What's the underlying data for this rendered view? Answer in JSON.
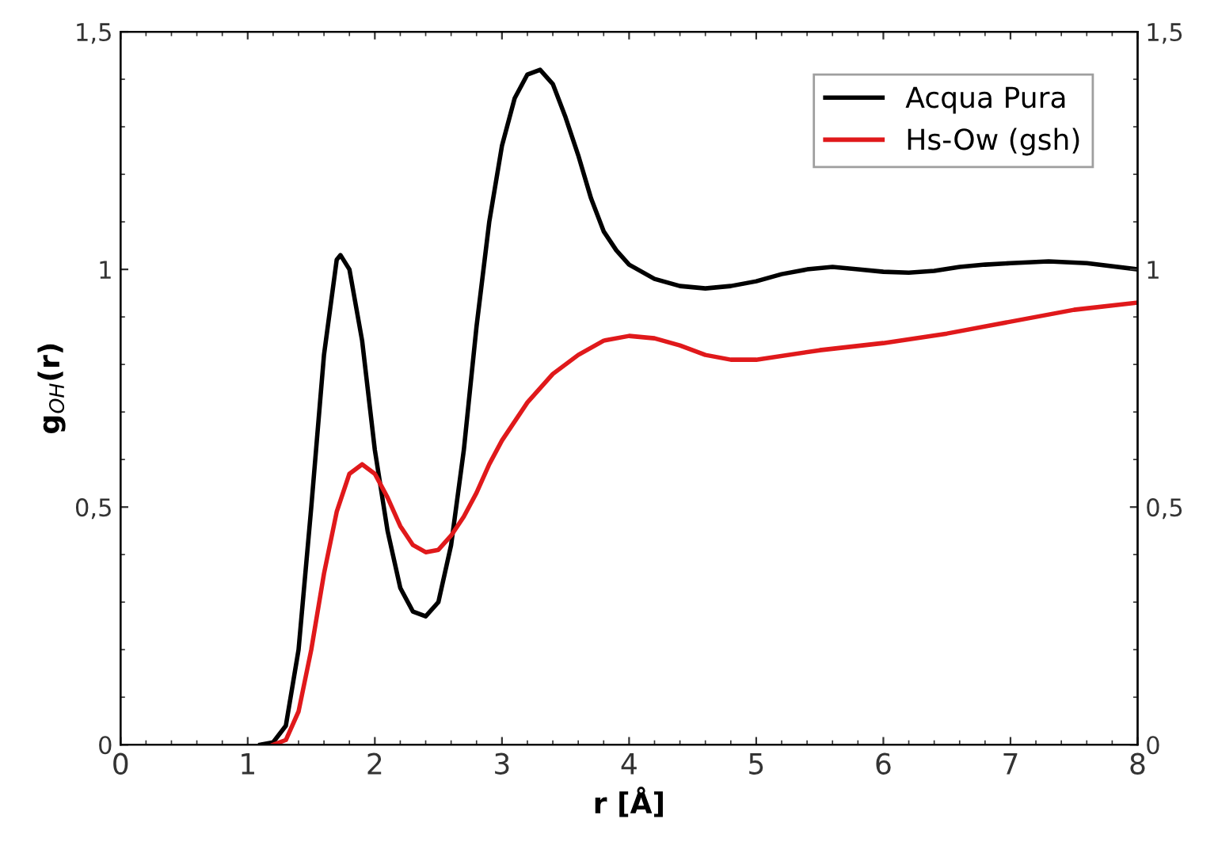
{
  "chart_data": {
    "type": "line",
    "xlabel": "r [Å]",
    "ylabel": "g$_{OH}$(r)",
    "xlim": [
      0,
      8
    ],
    "xticks": [
      0,
      1,
      2,
      3,
      4,
      5,
      6,
      7,
      8
    ],
    "ylim": [
      0,
      1.5
    ],
    "yticks": [
      0,
      {
        "value": 0.5,
        "label": "0,5"
      },
      1,
      {
        "value": 1.5,
        "label": "1,5"
      }
    ],
    "y2lim": [
      0,
      1.5
    ],
    "y2ticks": [
      0,
      {
        "value": 0.5,
        "label": "0,5"
      },
      1,
      {
        "value": 1.5,
        "label": "1,5"
      }
    ],
    "grid": false,
    "legend": "top right",
    "marker": "none",
    "line_style": "solid",
    "series": [
      {
        "name": "Acqua Pura",
        "color": "#000000",
        "x": [
          1.1,
          1.2,
          1.3,
          1.4,
          1.5,
          1.6,
          1.7,
          1.73,
          1.8,
          1.9,
          2.0,
          2.1,
          2.2,
          2.3,
          2.4,
          2.5,
          2.6,
          2.7,
          2.8,
          2.9,
          3.0,
          3.1,
          3.2,
          3.3,
          3.4,
          3.5,
          3.6,
          3.7,
          3.8,
          3.9,
          4.0,
          4.2,
          4.4,
          4.6,
          4.8,
          5.0,
          5.2,
          5.4,
          5.6,
          5.8,
          6.0,
          6.2,
          6.4,
          6.6,
          6.8,
          7.0,
          7.3,
          7.6,
          8.0
        ],
        "values": [
          0,
          0.005,
          0.04,
          0.2,
          0.5,
          0.82,
          1.02,
          1.03,
          1.0,
          0.85,
          0.62,
          0.45,
          0.33,
          0.28,
          0.27,
          0.3,
          0.42,
          0.62,
          0.88,
          1.1,
          1.26,
          1.36,
          1.41,
          1.42,
          1.39,
          1.32,
          1.24,
          1.15,
          1.08,
          1.04,
          1.01,
          0.98,
          0.965,
          0.96,
          0.965,
          0.975,
          0.99,
          1.0,
          1.005,
          1.0,
          0.995,
          0.993,
          0.997,
          1.005,
          1.01,
          1.013,
          1.017,
          1.013,
          1.0
        ]
      },
      {
        "name": "Hs-Ow (gsh)",
        "color": "#e0191b",
        "x": [
          1.2,
          1.3,
          1.4,
          1.5,
          1.6,
          1.7,
          1.8,
          1.9,
          2.0,
          2.1,
          2.2,
          2.3,
          2.4,
          2.5,
          2.6,
          2.7,
          2.8,
          2.9,
          3.0,
          3.2,
          3.4,
          3.6,
          3.8,
          4.0,
          4.2,
          4.4,
          4.6,
          4.8,
          5.0,
          5.5,
          6.0,
          6.5,
          7.0,
          7.5,
          8.0
        ],
        "values": [
          0,
          0.01,
          0.07,
          0.2,
          0.36,
          0.49,
          0.57,
          0.59,
          0.57,
          0.52,
          0.46,
          0.42,
          0.405,
          0.41,
          0.44,
          0.48,
          0.53,
          0.59,
          0.64,
          0.72,
          0.78,
          0.82,
          0.85,
          0.86,
          0.855,
          0.84,
          0.82,
          0.81,
          0.81,
          0.83,
          0.845,
          0.865,
          0.89,
          0.915,
          0.93
        ]
      }
    ]
  }
}
